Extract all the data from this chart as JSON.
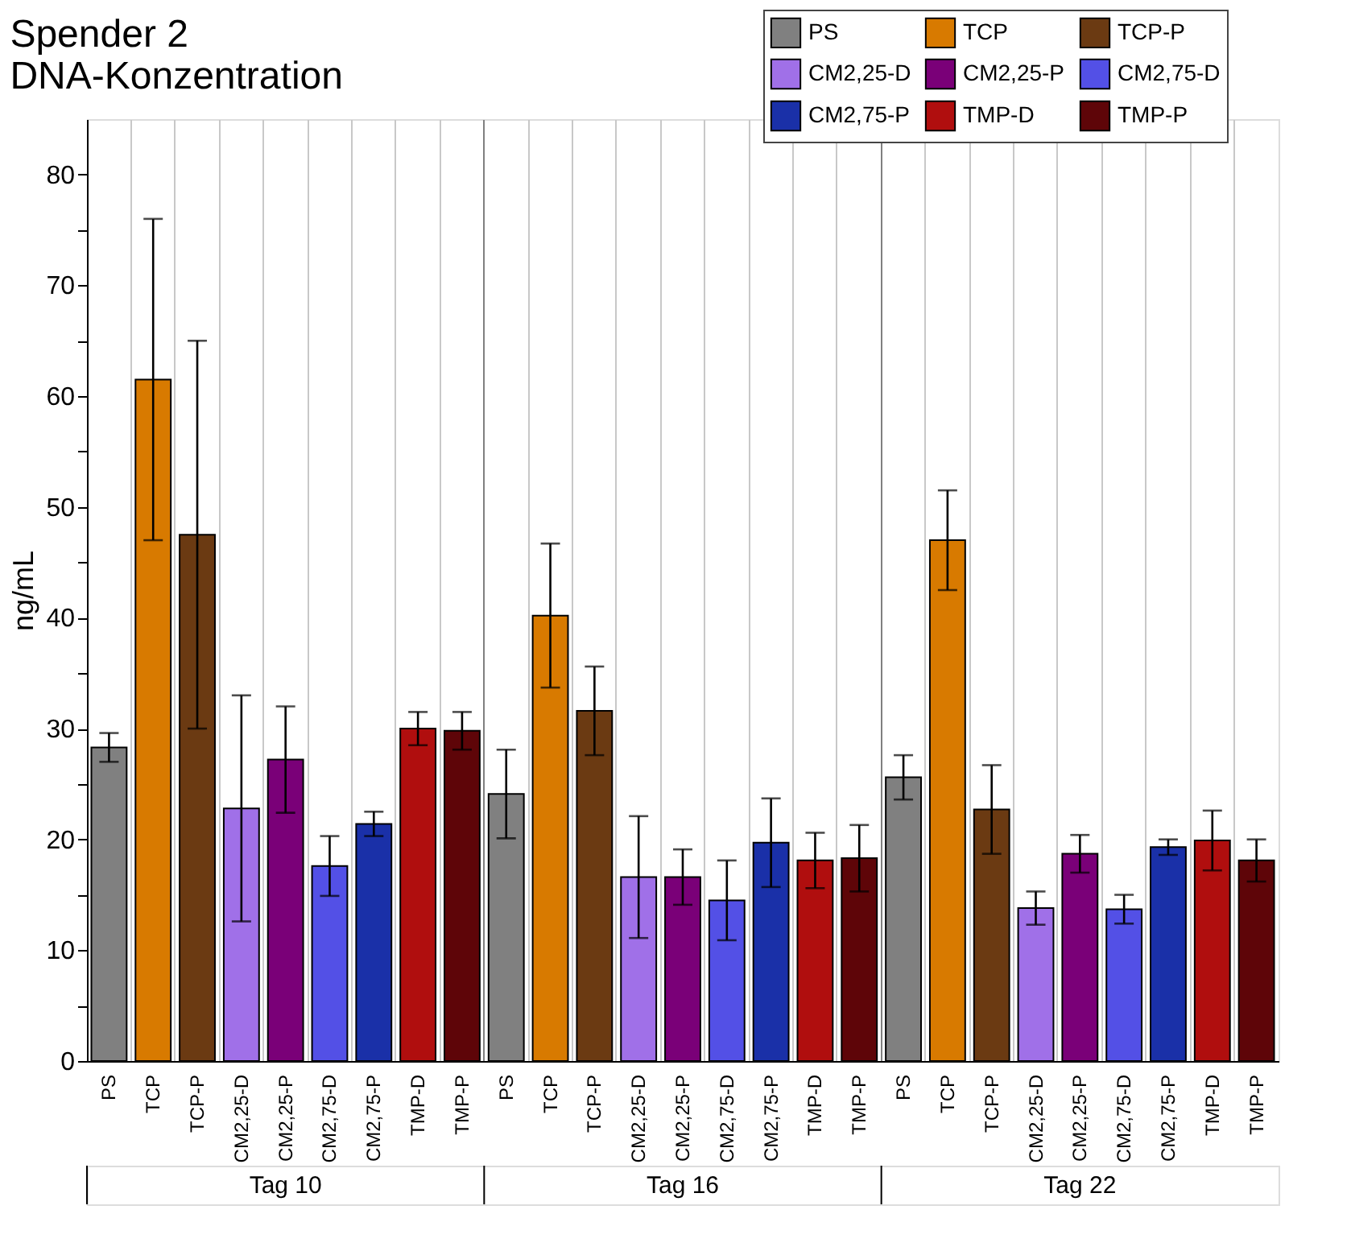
{
  "chart_data": {
    "type": "bar",
    "title": [
      "Spender 2",
      "DNA-Konzentration"
    ],
    "ylabel": "ng/mL",
    "categories": [
      "Tag 10",
      "Tag 16",
      "Tag 22"
    ],
    "series": [
      {
        "name": "PS",
        "color": "#808080",
        "values": [
          28.3,
          24.1,
          25.6
        ],
        "errors": [
          1.3,
          4.0,
          2.0
        ]
      },
      {
        "name": "TCP",
        "color": "#d87a00",
        "values": [
          61.5,
          40.2,
          47.0
        ],
        "errors": [
          14.5,
          6.5,
          4.5
        ]
      },
      {
        "name": "TCP-P",
        "color": "#6b3a12",
        "values": [
          47.5,
          31.6,
          22.7
        ],
        "errors": [
          17.5,
          4.0,
          4.0
        ]
      },
      {
        "name": "CM2,25-D",
        "color": "#a070e8",
        "values": [
          22.8,
          16.6,
          13.8
        ],
        "errors": [
          10.2,
          5.5,
          1.5
        ]
      },
      {
        "name": "CM2,25-P",
        "color": "#7a0078",
        "values": [
          27.2,
          16.6,
          18.7
        ],
        "errors": [
          4.8,
          2.5,
          1.7
        ]
      },
      {
        "name": "CM2,75-D",
        "color": "#5350e6",
        "values": [
          17.6,
          14.5,
          13.7
        ],
        "errors": [
          2.7,
          3.6,
          1.3
        ]
      },
      {
        "name": "CM2,75-P",
        "color": "#1a30a8",
        "values": [
          21.4,
          19.7,
          19.3
        ],
        "errors": [
          1.1,
          4.0,
          0.7
        ]
      },
      {
        "name": "TMP-D",
        "color": "#b00e0e",
        "values": [
          30.0,
          18.1,
          19.9
        ],
        "errors": [
          1.5,
          2.5,
          2.7
        ]
      },
      {
        "name": "TMP-P",
        "color": "#5e0508",
        "values": [
          29.8,
          18.3,
          18.1
        ],
        "errors": [
          1.7,
          3.0,
          1.9
        ]
      }
    ],
    "ylim": [
      0,
      85
    ],
    "yticks": [
      0,
      {
        "value": 5,
        "label": null
      },
      10,
      {
        "value": 15,
        "label": null
      },
      20,
      {
        "value": 25,
        "label": null
      },
      30,
      {
        "value": 35,
        "label": null
      },
      40,
      {
        "value": 45,
        "label": null
      },
      50,
      {
        "value": 55,
        "label": null
      },
      60,
      {
        "value": 65,
        "label": null
      },
      70,
      {
        "value": 75,
        "label": null
      },
      80
    ],
    "grid": "x",
    "legend": "top right"
  }
}
